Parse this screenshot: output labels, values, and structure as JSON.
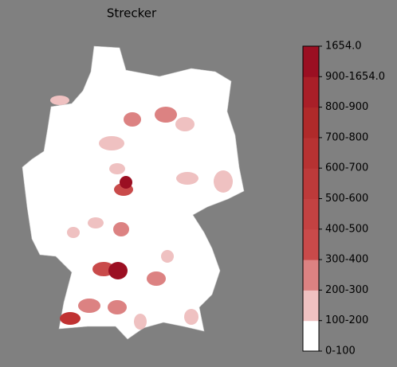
{
  "title": "Strecker",
  "colorbar": {
    "labels": [
      "0-100",
      "100-200",
      "200-300",
      "300-400",
      "400-500",
      "500-600",
      "600-700",
      "700-800",
      "800-900",
      "900-1654.0",
      "1654.0"
    ],
    "colors": [
      "#ffffff",
      "#efc1c1",
      "#dc8282",
      "#c94a4a",
      "#c34242",
      "#bd3a3a",
      "#b73232",
      "#b02a2a",
      "#a91f28",
      "#9b0f22"
    ]
  }
}
